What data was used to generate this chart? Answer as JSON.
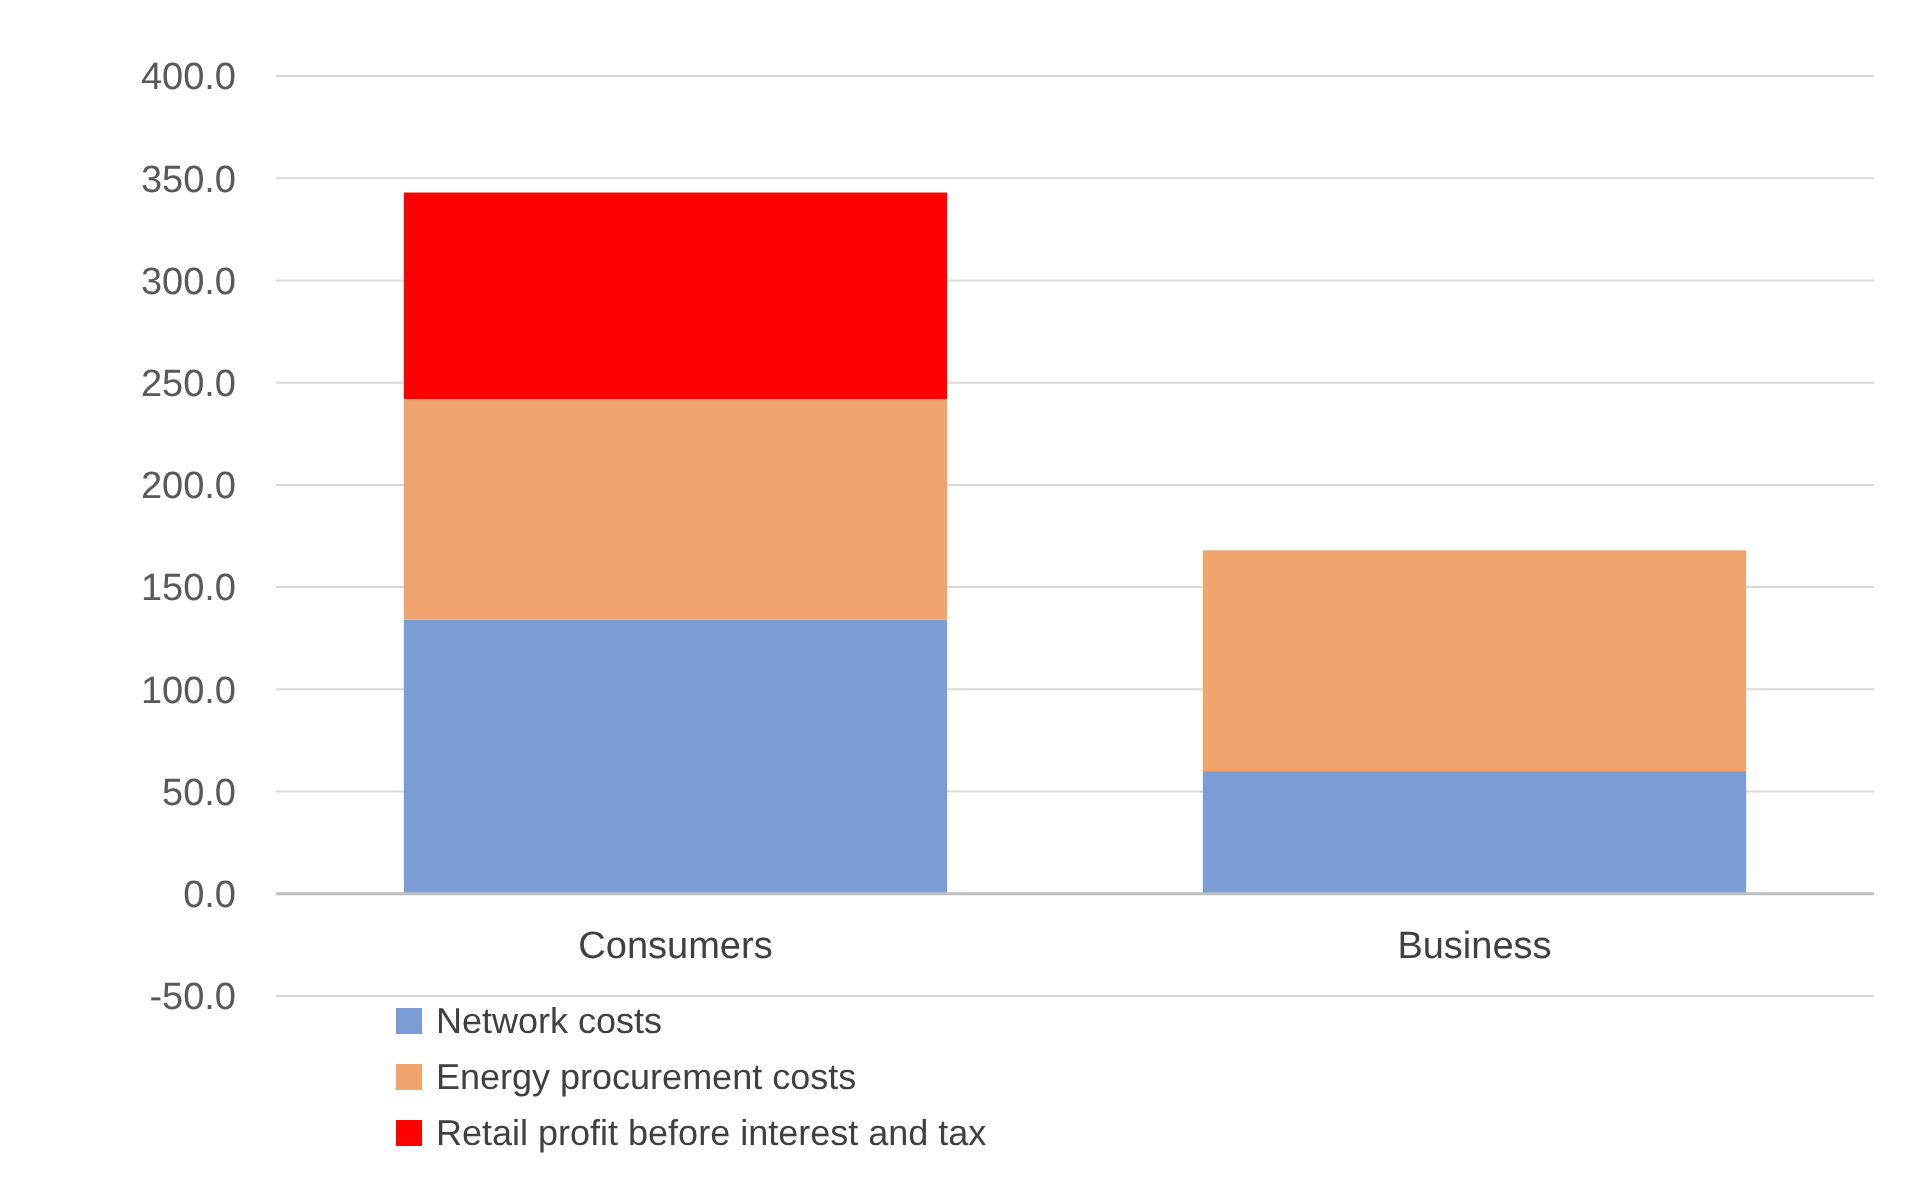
{
  "chart_data": {
    "type": "bar",
    "stacked": true,
    "categories": [
      "Consumers",
      "Business"
    ],
    "series": [
      {
        "name": "Network costs",
        "color": "#7b9dd5",
        "values": [
          134,
          60
        ]
      },
      {
        "name": "Energy procurement costs",
        "color": "#f2a46e",
        "values": [
          108,
          108
        ]
      },
      {
        "name": "Retail profit before interest and tax",
        "color": "#ff0000",
        "values": [
          101,
          null
        ]
      }
    ],
    "ylim": [
      -50,
      400
    ],
    "yticks": [
      {
        "value": -50,
        "label": "-50.0"
      },
      {
        "value": 0,
        "label": "0.0"
      },
      {
        "value": 50,
        "label": "50.0"
      },
      {
        "value": 100,
        "label": "100.0"
      },
      {
        "value": 150,
        "label": "150.0"
      },
      {
        "value": 200,
        "label": "200.0"
      },
      {
        "value": 250,
        "label": "250.0"
      },
      {
        "value": 300,
        "label": "300.0"
      },
      {
        "value": 350,
        "label": "350.0"
      },
      {
        "value": 400,
        "label": "400.0"
      }
    ],
    "grid": "y",
    "legend": "bottom left"
  }
}
